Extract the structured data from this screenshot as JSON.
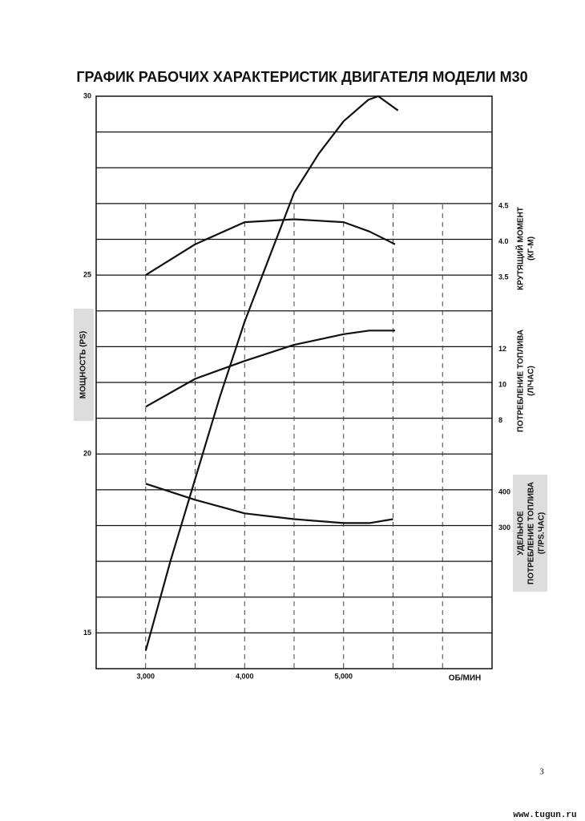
{
  "chart_data": {
    "type": "line",
    "title": "ГРАФИК РАБОЧИХ ХАРАКТЕРИСТИК ДВИГАТЕЛЯ МОДЕЛИ М30",
    "xlabel": "ОБ/МИН",
    "ylabel": "МОЩНОСТЬ (PS)",
    "xlim": [
      2500,
      6500
    ],
    "xticks": [
      {
        "value": 3000,
        "label": "3,000"
      },
      {
        "value": 4000,
        "label": "4,000"
      },
      {
        "value": 5000,
        "label": "5,000"
      }
    ],
    "xgrid": [
      3000,
      3500,
      4000,
      4500,
      5000,
      5500,
      6000
    ],
    "ylim": [
      14,
      30
    ],
    "yticks": [
      15,
      20,
      25,
      30
    ],
    "ygrid": [
      15,
      16,
      17,
      18,
      19,
      20,
      21,
      22,
      23,
      24,
      25,
      26,
      27,
      28,
      29
    ],
    "y2label": [
      "КРУТЯЩИЙ МОМЕНТ",
      "(КГ-М)"
    ],
    "y2lim": [
      -2,
      6
    ],
    "y2ticks": [
      3.5,
      {
        "value": 4,
        "label": "4.0"
      },
      4.5
    ],
    "y3label": [
      "ПОТРЕБЛЕНИЕ ТОПЛИВА",
      "(Л/ЧАС)"
    ],
    "y3lim": [
      -6,
      26
    ],
    "y3ticks": [
      8,
      10,
      12
    ],
    "y4label": [
      "УДЕЛЬНОЕ",
      "ПОТРЕБЛЕНИЕ ТОПЛИВА",
      "(Г/PS.ЧАС)"
    ],
    "y4lim": [
      -100,
      1500
    ],
    "y4ticks": [
      300,
      400
    ],
    "series": [
      {
        "color": "#111111",
        "axis": "y",
        "x": [
          3000,
          3250,
          3500,
          3750,
          4000,
          4250,
          4500,
          4750,
          5000,
          5250,
          5350,
          5550
        ],
        "values": [
          14.5,
          17.0,
          19.3,
          21.6,
          23.7,
          25.5,
          27.3,
          28.4,
          29.3,
          29.9,
          30.0,
          29.6
        ]
      },
      {
        "color": "#111111",
        "axis": "y2",
        "x": [
          3000,
          3500,
          4000,
          4500,
          5000,
          5260,
          5520
        ],
        "values": [
          3.5,
          3.93,
          4.24,
          4.28,
          4.24,
          4.11,
          3.93
        ]
      },
      {
        "color": "#111111",
        "axis": "y3",
        "x": [
          3000,
          3500,
          4000,
          4500,
          5000,
          5260,
          5520
        ],
        "values": [
          8.64,
          10.2,
          11.2,
          12.1,
          12.7,
          12.9,
          12.9
        ]
      },
      {
        "color": "#111111",
        "axis": "y4",
        "x": [
          3000,
          3500,
          4000,
          4500,
          5000,
          5260,
          5500
        ],
        "values": [
          417,
          372,
          334,
          318,
          307,
          307,
          318
        ]
      }
    ]
  },
  "page_number": "3",
  "watermark": "www.tugun.ru"
}
